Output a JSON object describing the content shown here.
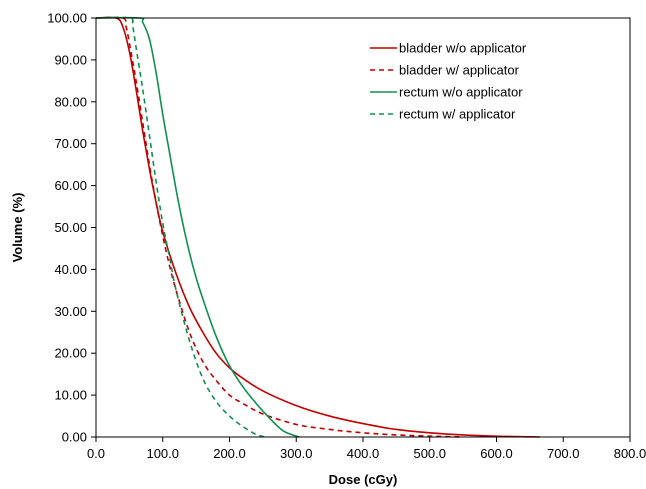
{
  "chart_data": {
    "type": "line",
    "xlabel": "Dose (cGy)",
    "ylabel": "Volume (%)",
    "xlim": [
      0,
      800
    ],
    "ylim": [
      0,
      100
    ],
    "x_ticks": [
      "0.0",
      "100.0",
      "200.0",
      "300.0",
      "400.0",
      "500.0",
      "600.0",
      "700.0",
      "800.0"
    ],
    "y_ticks": [
      "0.00",
      "10.00",
      "20.00",
      "30.00",
      "40.00",
      "50.00",
      "60.00",
      "70.00",
      "80.00",
      "90.00",
      "100.00"
    ],
    "grid": false,
    "legend_position": "top-right",
    "series": [
      {
        "name": "bladder w/o applicator",
        "color": "#c00000",
        "dash": "solid",
        "x": [
          0,
          30,
          40,
          50,
          60,
          70,
          80,
          90,
          100,
          120,
          140,
          160,
          180,
          200,
          220,
          250,
          300,
          350,
          400,
          450,
          500,
          550,
          600,
          650,
          665
        ],
        "y": [
          100,
          100,
          98,
          92,
          83,
          73,
          64,
          56,
          49,
          39,
          31,
          25,
          20,
          16.5,
          14,
          11,
          7.5,
          5,
          3.2,
          1.8,
          1,
          0.5,
          0.2,
          0.05,
          0
        ]
      },
      {
        "name": "bladder w/ applicator",
        "color": "#c00000",
        "dash": "dashed",
        "x": [
          0,
          40,
          45,
          50,
          60,
          70,
          80,
          90,
          100,
          110,
          120,
          140,
          160,
          180,
          200,
          220,
          250,
          300,
          350,
          400,
          450,
          500,
          550
        ],
        "y": [
          100,
          100,
          98,
          94,
          85,
          75,
          65,
          56,
          48,
          41,
          35,
          25,
          18,
          13.5,
          10,
          8,
          5.5,
          3,
          1.8,
          1,
          0.5,
          0.2,
          0
        ]
      },
      {
        "name": "rectum w/o applicator",
        "color": "#109050",
        "dash": "solid",
        "x": [
          0,
          65,
          70,
          80,
          90,
          100,
          110,
          120,
          130,
          140,
          150,
          160,
          180,
          200,
          220,
          240,
          260,
          280,
          300,
          305
        ],
        "y": [
          100,
          100,
          99,
          95,
          87,
          77,
          68,
          59,
          51,
          44,
          38,
          33,
          24,
          17,
          12,
          8,
          4.5,
          1.5,
          0.2,
          0
        ]
      },
      {
        "name": "rectum w/ applicator",
        "color": "#109050",
        "dash": "dashed",
        "x": [
          0,
          50,
          55,
          60,
          70,
          80,
          90,
          100,
          110,
          120,
          140,
          160,
          180,
          200,
          220,
          240,
          255
        ],
        "y": [
          100,
          100,
          98,
          93,
          83,
          72,
          61,
          51,
          43,
          35,
          23,
          14,
          8.5,
          5,
          2.5,
          0.6,
          0
        ]
      }
    ]
  }
}
